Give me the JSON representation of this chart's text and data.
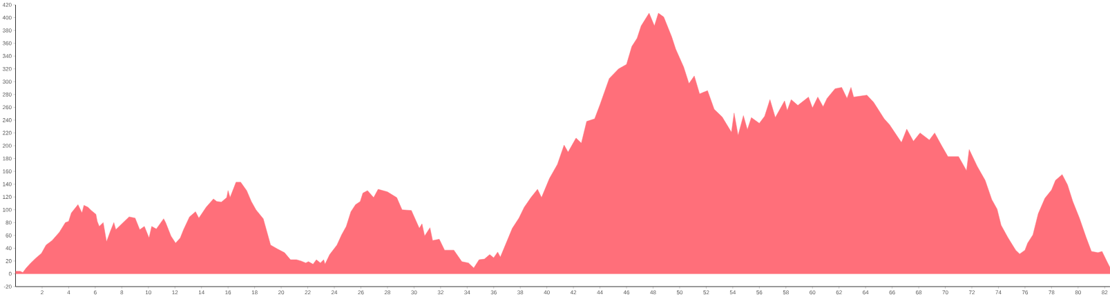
{
  "chart_data": {
    "type": "area",
    "x": [
      0,
      0.35,
      0.55,
      0.8,
      1.15,
      1.5,
      1.95,
      2.3,
      2.75,
      3.3,
      3.75,
      4,
      4.2,
      4.7,
      5,
      5.15,
      5.45,
      5.7,
      6.05,
      6.15,
      6.3,
      6.6,
      6.85,
      7.15,
      7.4,
      7.55,
      8.1,
      8.55,
      9,
      9.35,
      9.7,
      10.05,
      10.25,
      10.6,
      11.15,
      11.3,
      11.7,
      12.05,
      12.4,
      12.65,
      13.1,
      13.55,
      13.8,
      14.35,
      14.9,
      15.15,
      15.5,
      15.9,
      16,
      16.15,
      16.6,
      16.95,
      17.4,
      17.75,
      18.1,
      18.65,
      19.2,
      19.7,
      20.25,
      20.7,
      21.15,
      21.5,
      21.85,
      22.05,
      22.4,
      22.65,
      22.95,
      23.2,
      23.3,
      23.65,
      24.2,
      24.55,
      24.9,
      25.25,
      25.6,
      25.95,
      26.15,
      26.5,
      26.96,
      27.3,
      28,
      28.7,
      29.1,
      29.8,
      30.4,
      30.6,
      30.8,
      31.2,
      31.4,
      31.9,
      32.3,
      32.7,
      33,
      33.6,
      34.1,
      34.5,
      34.9,
      35.3,
      35.7,
      36,
      36.3,
      36.5,
      37.4,
      37.9,
      38.3,
      38.8,
      39.3,
      39.6,
      40.2,
      40.8,
      41.3,
      41.6,
      42.2,
      42.6,
      43,
      43.6,
      44,
      44.7,
      45.4,
      46,
      46.4,
      46.8,
      47.1,
      47.7,
      48.1,
      48.4,
      48.8,
      49.4,
      49.7,
      50.3,
      50.7,
      51.1,
      51.5,
      52.1,
      52.6,
      53.2,
      53.9,
      54.1,
      54.4,
      54.8,
      55.1,
      55.4,
      56,
      56.4,
      56.8,
      57.2,
      57.9,
      58.1,
      58.4,
      58.9,
      59.7,
      60,
      60.4,
      60.8,
      61.1,
      61.7,
      62.2,
      62.6,
      62.9,
      63.1,
      64.1,
      64.6,
      65.4,
      65.8,
      66.7,
      67.1,
      67.6,
      68.1,
      68.8,
      69.2,
      69.7,
      70.2,
      71,
      71.6,
      71.8,
      72.4,
      73,
      73.5,
      73.9,
      74.2,
      74.7,
      75.3,
      75.6,
      76,
      76.2,
      76.6,
      77,
      77.5,
      78,
      78.3,
      78.8,
      79.2,
      79.6,
      80.1,
      80.6,
      81,
      81.5,
      81.8,
      82.2,
      82.4
    ],
    "values": [
      4,
      4,
      2,
      9,
      17,
      24,
      32,
      45,
      52,
      65,
      80,
      82,
      95,
      108,
      95,
      107,
      104,
      99,
      93,
      82,
      74,
      80,
      50,
      67,
      80,
      69,
      80,
      89,
      87,
      69,
      74,
      56,
      74,
      70,
      86,
      80,
      59,
      48,
      56,
      69,
      89,
      97,
      87,
      104,
      117,
      113,
      112,
      119,
      130,
      119,
      143,
      143,
      130,
      113,
      100,
      86,
      45,
      39,
      33,
      22,
      22,
      20,
      17,
      19,
      15,
      22,
      17,
      22,
      15,
      30,
      45,
      61,
      74,
      97,
      108,
      113,
      126,
      130,
      119,
      132,
      128,
      119,
      100,
      99,
      71,
      78,
      59,
      72,
      52,
      54,
      37,
      37,
      37,
      19,
      17,
      9,
      22,
      23,
      30,
      25,
      34,
      26,
      71,
      87,
      104,
      119,
      132,
      119,
      149,
      171,
      201,
      190,
      212,
      204,
      238,
      242,
      264,
      305,
      320,
      327,
      355,
      368,
      387,
      407,
      387,
      407,
      401,
      370,
      351,
      323,
      297,
      309,
      281,
      286,
      257,
      245,
      221,
      251,
      216,
      247,
      225,
      244,
      235,
      246,
      272,
      244,
      270,
      255,
      272,
      263,
      276,
      259,
      276,
      261,
      274,
      289,
      291,
      274,
      291,
      276,
      279,
      268,
      242,
      233,
      205,
      226,
      207,
      220,
      209,
      220,
      201,
      183,
      183,
      161,
      194,
      168,
      146,
      116,
      101,
      76,
      57,
      37,
      31,
      37,
      48,
      61,
      94,
      118,
      131,
      146,
      155,
      139,
      113,
      87,
      57,
      35,
      33,
      35,
      18,
      10
    ],
    "color": "#ff6f7a",
    "xlim": [
      0,
      82.4
    ],
    "ylim": [
      -20,
      420
    ],
    "xticks": [
      2,
      4,
      6,
      8,
      10,
      12,
      14,
      16,
      18,
      20,
      22,
      24,
      26,
      28,
      30,
      32,
      34,
      36,
      38,
      40,
      42,
      44,
      46,
      48,
      50,
      52,
      54,
      56,
      58,
      60,
      62,
      64,
      66,
      68,
      70,
      72,
      74,
      76,
      78,
      80,
      82
    ],
    "yticks": [
      -20,
      0,
      20,
      40,
      60,
      80,
      100,
      120,
      140,
      160,
      180,
      200,
      220,
      240,
      260,
      280,
      300,
      320,
      340,
      360,
      380,
      400,
      420
    ]
  }
}
